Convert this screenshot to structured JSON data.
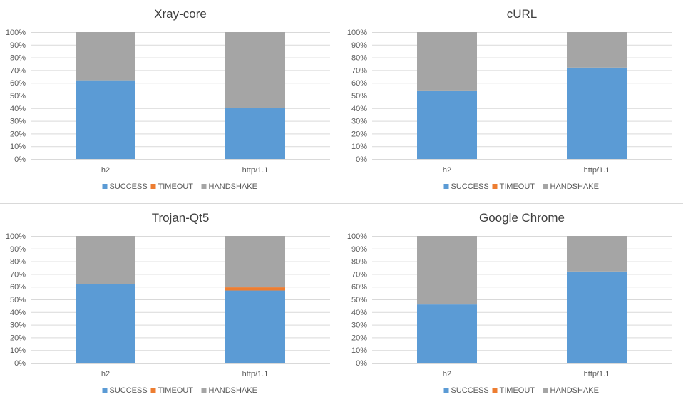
{
  "legend_items": [
    {
      "label": "SUCCESS",
      "color": "#5B9BD5"
    },
    {
      "label": "TIMEOUT",
      "color": "#ED7D31"
    },
    {
      "label": "HANDSHAKE",
      "color": "#A5A5A5"
    }
  ],
  "chart_data": [
    {
      "type": "bar",
      "stacked": true,
      "title": "Xray-core",
      "categories": [
        "h2",
        "http/1.1"
      ],
      "series": [
        {
          "name": "SUCCESS",
          "values": [
            62,
            40
          ],
          "color": "#5B9BD5"
        },
        {
          "name": "TIMEOUT",
          "values": [
            0,
            0
          ],
          "color": "#ED7D31"
        },
        {
          "name": "HANDSHAKE",
          "values": [
            38,
            60
          ],
          "color": "#A5A5A5"
        }
      ],
      "ylim": [
        0,
        100
      ],
      "yticks": [
        "0%",
        "10%",
        "20%",
        "30%",
        "40%",
        "50%",
        "60%",
        "70%",
        "80%",
        "90%",
        "100%"
      ],
      "grid": true,
      "legend": "bottom"
    },
    {
      "type": "bar",
      "stacked": true,
      "title": "cURL",
      "categories": [
        "h2",
        "http/1.1"
      ],
      "series": [
        {
          "name": "SUCCESS",
          "values": [
            54,
            72
          ],
          "color": "#5B9BD5"
        },
        {
          "name": "TIMEOUT",
          "values": [
            0,
            0
          ],
          "color": "#ED7D31"
        },
        {
          "name": "HANDSHAKE",
          "values": [
            46,
            28
          ],
          "color": "#A5A5A5"
        }
      ],
      "ylim": [
        0,
        100
      ],
      "yticks": [
        "0%",
        "10%",
        "20%",
        "30%",
        "40%",
        "50%",
        "60%",
        "70%",
        "80%",
        "90%",
        "100%"
      ],
      "grid": true,
      "legend": "bottom"
    },
    {
      "type": "bar",
      "stacked": true,
      "title": "Trojan-Qt5",
      "categories": [
        "h2",
        "http/1.1"
      ],
      "series": [
        {
          "name": "SUCCESS",
          "values": [
            62,
            57
          ],
          "color": "#5B9BD5"
        },
        {
          "name": "TIMEOUT",
          "values": [
            0,
            2.5
          ],
          "color": "#ED7D31"
        },
        {
          "name": "HANDSHAKE",
          "values": [
            38,
            40.5
          ],
          "color": "#A5A5A5"
        }
      ],
      "ylim": [
        0,
        100
      ],
      "yticks": [
        "0%",
        "10%",
        "20%",
        "30%",
        "40%",
        "50%",
        "60%",
        "70%",
        "80%",
        "90%",
        "100%"
      ],
      "grid": true,
      "legend": "bottom"
    },
    {
      "type": "bar",
      "stacked": true,
      "title": "Google Chrome",
      "categories": [
        "h2",
        "http/1.1"
      ],
      "series": [
        {
          "name": "SUCCESS",
          "values": [
            46,
            72
          ],
          "color": "#5B9BD5"
        },
        {
          "name": "TIMEOUT",
          "values": [
            0,
            0
          ],
          "color": "#ED7D31"
        },
        {
          "name": "HANDSHAKE",
          "values": [
            54,
            28
          ],
          "color": "#A5A5A5"
        }
      ],
      "ylim": [
        0,
        100
      ],
      "yticks": [
        "0%",
        "10%",
        "20%",
        "30%",
        "40%",
        "50%",
        "60%",
        "70%",
        "80%",
        "90%",
        "100%"
      ],
      "grid": true,
      "legend": "bottom"
    }
  ]
}
